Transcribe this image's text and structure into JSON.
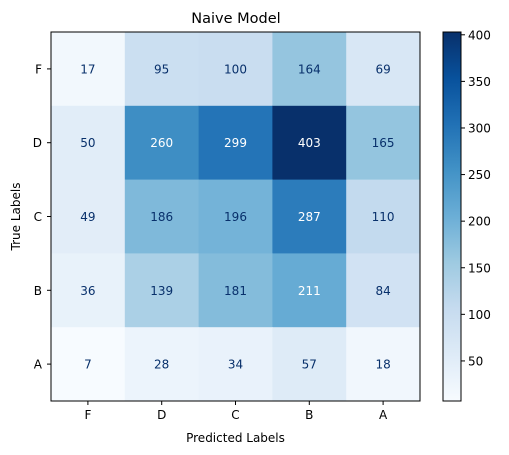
{
  "chart_data": {
    "type": "heatmap",
    "title": "Naive Model",
    "xlabel": "Predicted Labels",
    "ylabel": "True Labels",
    "x_categories": [
      "F",
      "D",
      "C",
      "B",
      "A"
    ],
    "y_categories": [
      "F",
      "D",
      "C",
      "B",
      "A"
    ],
    "values": [
      [
        17,
        95,
        100,
        164,
        69
      ],
      [
        50,
        260,
        299,
        403,
        165
      ],
      [
        49,
        186,
        196,
        287,
        110
      ],
      [
        36,
        139,
        181,
        211,
        84
      ],
      [
        7,
        28,
        34,
        57,
        18
      ]
    ],
    "colorbar": {
      "colormap": "Blues",
      "min": 7,
      "max": 403,
      "ticks": [
        50,
        100,
        150,
        200,
        250,
        300,
        350,
        400
      ]
    }
  }
}
